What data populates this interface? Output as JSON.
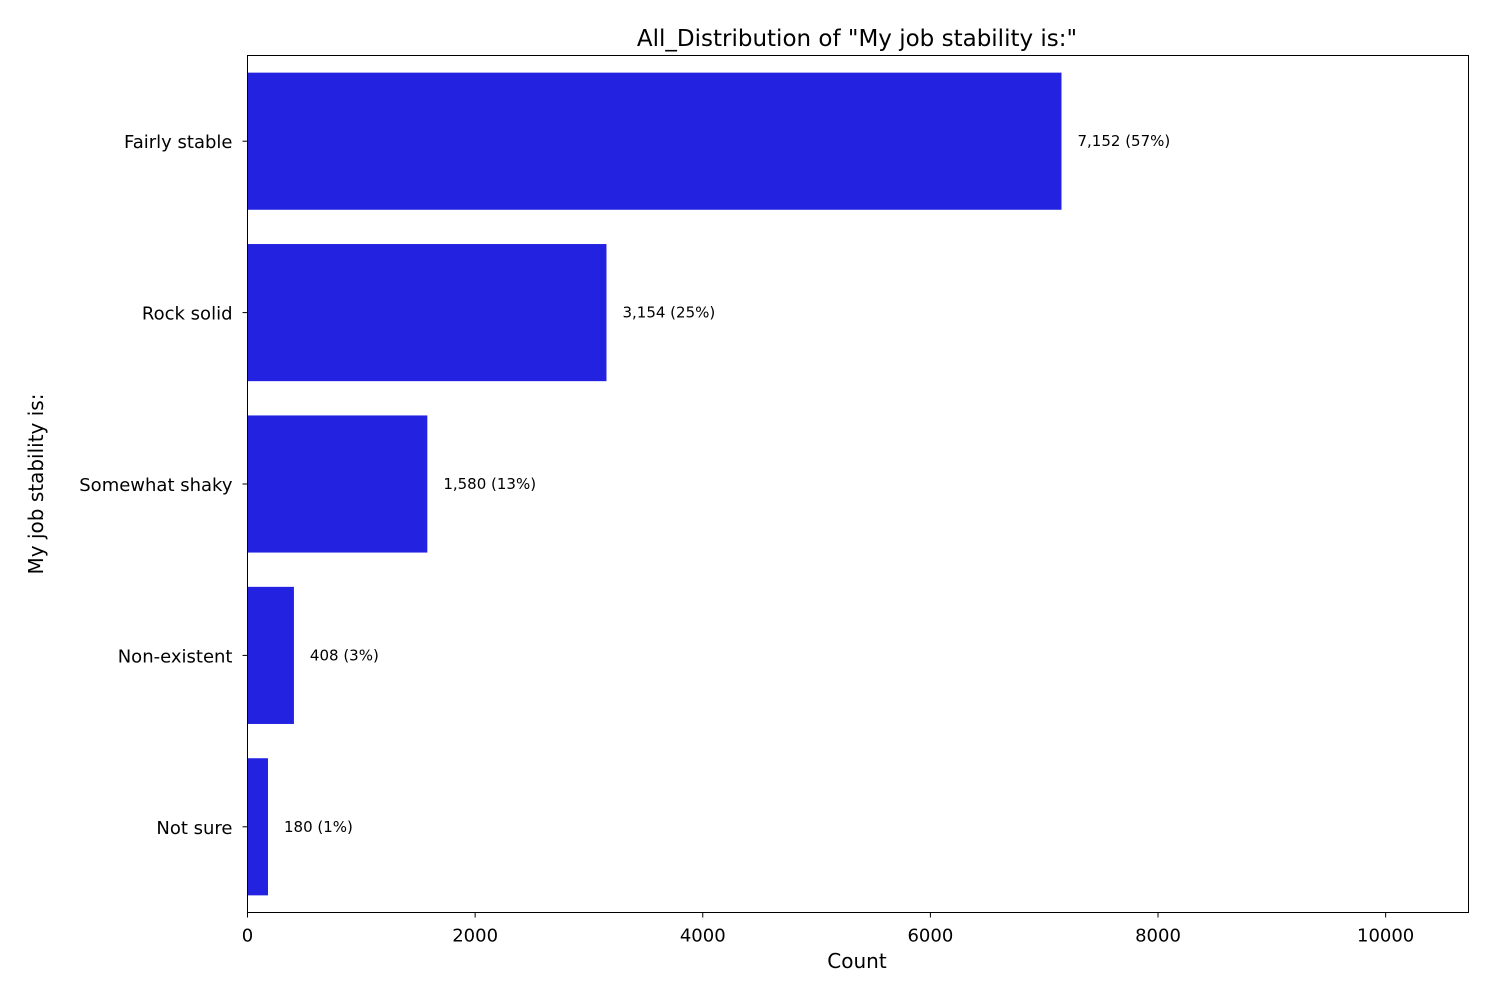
{
  "chart_data": {
    "type": "bar",
    "orientation": "horizontal",
    "title": "All_Distribution of \"My job stability is:\"",
    "xlabel": "Count",
    "ylabel": "My job stability is:",
    "categories": [
      "Fairly stable",
      "Rock solid",
      "Somewhat shaky",
      "Non-existent",
      "Not sure"
    ],
    "values": [
      7152,
      3154,
      1580,
      408,
      180
    ],
    "data_labels": [
      "7,152 (57%)",
      "3,154 (25%)",
      "1,580 (13%)",
      "408 (3%)",
      "180 (1%)"
    ],
    "xlim": [
      0,
      10728
    ],
    "xticks": [
      0,
      2000,
      4000,
      6000,
      8000,
      10000
    ],
    "xtick_labels": [
      "0",
      "2000",
      "4000",
      "6000",
      "8000",
      "10000"
    ],
    "grid": false,
    "legend": "none",
    "bar_color": "#2222e0"
  }
}
